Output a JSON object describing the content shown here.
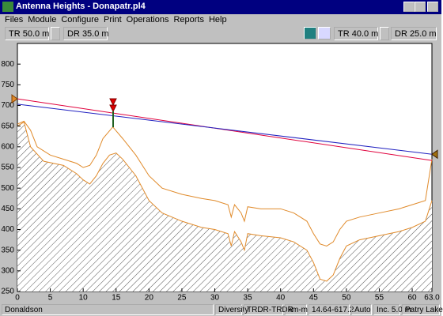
{
  "window_title": "Antenna Heights - Donapatr.pl4",
  "menu": [
    "Files",
    "Module",
    "Configure",
    "Print",
    "Operations",
    "Reports",
    "Help"
  ],
  "toolbar": {
    "left": [
      "TR 50.0 m",
      "DR 35.0 m"
    ],
    "right": [
      "TR 40.0 m",
      "DR 25.0 m"
    ]
  },
  "status_bar": [
    "Donaldson",
    "Diversity",
    "TRDR-TRDR",
    "km-m",
    "14.64-617.2",
    "Auto",
    "Inc. 5.0 m",
    "Patry Lake"
  ],
  "chart_data": {
    "type": "line",
    "xlim": [
      0,
      63
    ],
    "ylim": [
      250,
      850
    ],
    "xticks": [
      0,
      5,
      10,
      15,
      20,
      25,
      30,
      35,
      40,
      45,
      50,
      55,
      60,
      {
        "value": 63,
        "label": "63.0"
      }
    ],
    "yticks": [
      250,
      300,
      350,
      400,
      450,
      500,
      550,
      600,
      650,
      700,
      750,
      800
    ],
    "series": [
      {
        "color": "#e08a2a",
        "fill": "hatch",
        "x": [
          0,
          1,
          2,
          4,
          7,
          9,
          10,
          11,
          12,
          13,
          14,
          15,
          16,
          18,
          20,
          22,
          25,
          28,
          30,
          32,
          32.5,
          33,
          34,
          34.5,
          35,
          37,
          40,
          42,
          44,
          45,
          46,
          47,
          48,
          49,
          50,
          52,
          55,
          58,
          60,
          62,
          63
        ],
        "values": [
          650,
          660,
          600,
          565,
          555,
          535,
          520,
          510,
          530,
          560,
          580,
          585,
          570,
          530,
          470,
          440,
          420,
          405,
          400,
          390,
          360,
          395,
          370,
          350,
          390,
          385,
          380,
          370,
          350,
          320,
          280,
          275,
          290,
          330,
          360,
          375,
          385,
          395,
          405,
          420,
          470
        ]
      },
      {
        "color": "#e08a2a",
        "x": [
          0,
          1,
          2,
          3,
          5,
          7,
          9,
          10,
          11,
          12,
          13,
          14.5,
          16,
          18,
          20,
          22,
          25,
          28,
          30,
          32,
          32.5,
          33,
          34,
          34.5,
          35,
          37,
          40,
          42,
          44,
          45,
          46,
          47,
          48,
          49,
          50,
          52,
          55,
          58,
          60,
          62,
          63
        ],
        "values": [
          655,
          662,
          640,
          600,
          580,
          570,
          560,
          550,
          555,
          580,
          620,
          648,
          620,
          580,
          530,
          500,
          485,
          475,
          470,
          460,
          430,
          460,
          440,
          420,
          455,
          450,
          450,
          440,
          420,
          390,
          365,
          360,
          370,
          400,
          420,
          430,
          440,
          450,
          460,
          470,
          570
        ]
      },
      {
        "color": "#e0003c",
        "x": [
          0,
          63
        ],
        "values": [
          716,
          567
        ]
      },
      {
        "color": "#2020c0",
        "x": [
          0,
          63
        ],
        "values": [
          703,
          582
        ]
      }
    ]
  }
}
